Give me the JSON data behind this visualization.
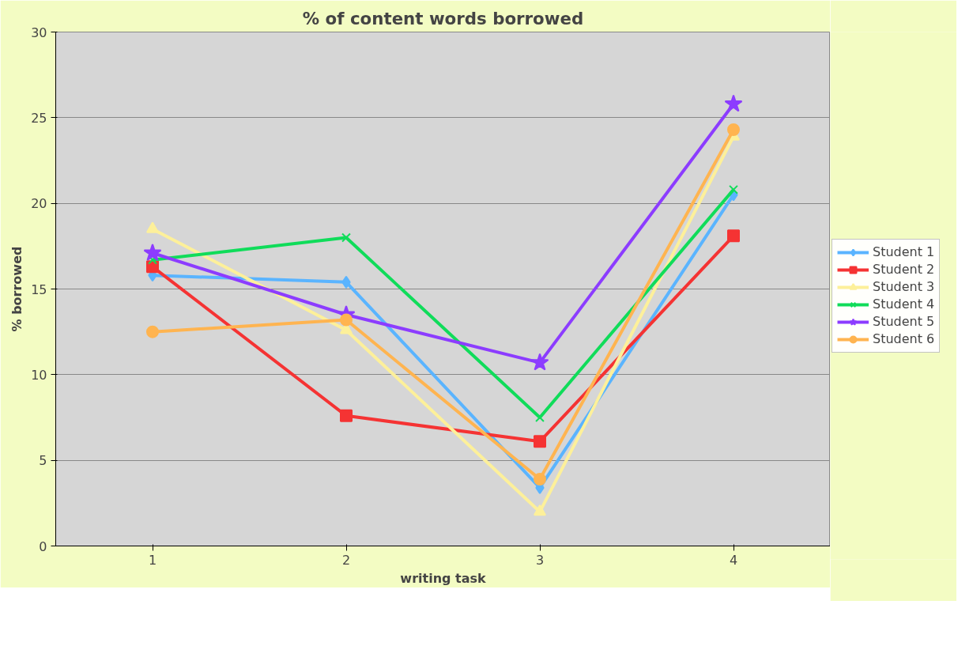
{
  "chart_data": {
    "type": "line",
    "title": "% of content words borrowed",
    "xlabel": "writing task",
    "ylabel": "% borrowed",
    "categories": [
      "1",
      "2",
      "3",
      "4"
    ],
    "series": [
      {
        "name": "Student 1",
        "color": "#5ab4ff",
        "marker": "diamond",
        "values": [
          15.8,
          15.4,
          3.4,
          20.5
        ]
      },
      {
        "name": "Student 2",
        "color": "#f53333",
        "marker": "square",
        "values": [
          16.3,
          7.6,
          6.1,
          18.1
        ]
      },
      {
        "name": "Student 3",
        "color": "#fdf09a",
        "marker": "triangle",
        "values": [
          18.5,
          12.6,
          2.0,
          23.9
        ]
      },
      {
        "name": "Student 4",
        "color": "#10dc5a",
        "marker": "cross",
        "values": [
          16.7,
          18.0,
          7.5,
          20.8
        ]
      },
      {
        "name": "Student 5",
        "color": "#8c3cff",
        "marker": "star",
        "values": [
          17.1,
          13.5,
          10.7,
          25.8
        ]
      },
      {
        "name": "Student 6",
        "color": "#ffb450",
        "marker": "circle",
        "values": [
          12.5,
          13.2,
          3.9,
          24.3
        ]
      }
    ],
    "ylim": [
      0,
      30
    ],
    "yticks": [
      0,
      5,
      10,
      15,
      20,
      25,
      30
    ],
    "grid": "y",
    "legend": "right",
    "line_style": "solid"
  }
}
